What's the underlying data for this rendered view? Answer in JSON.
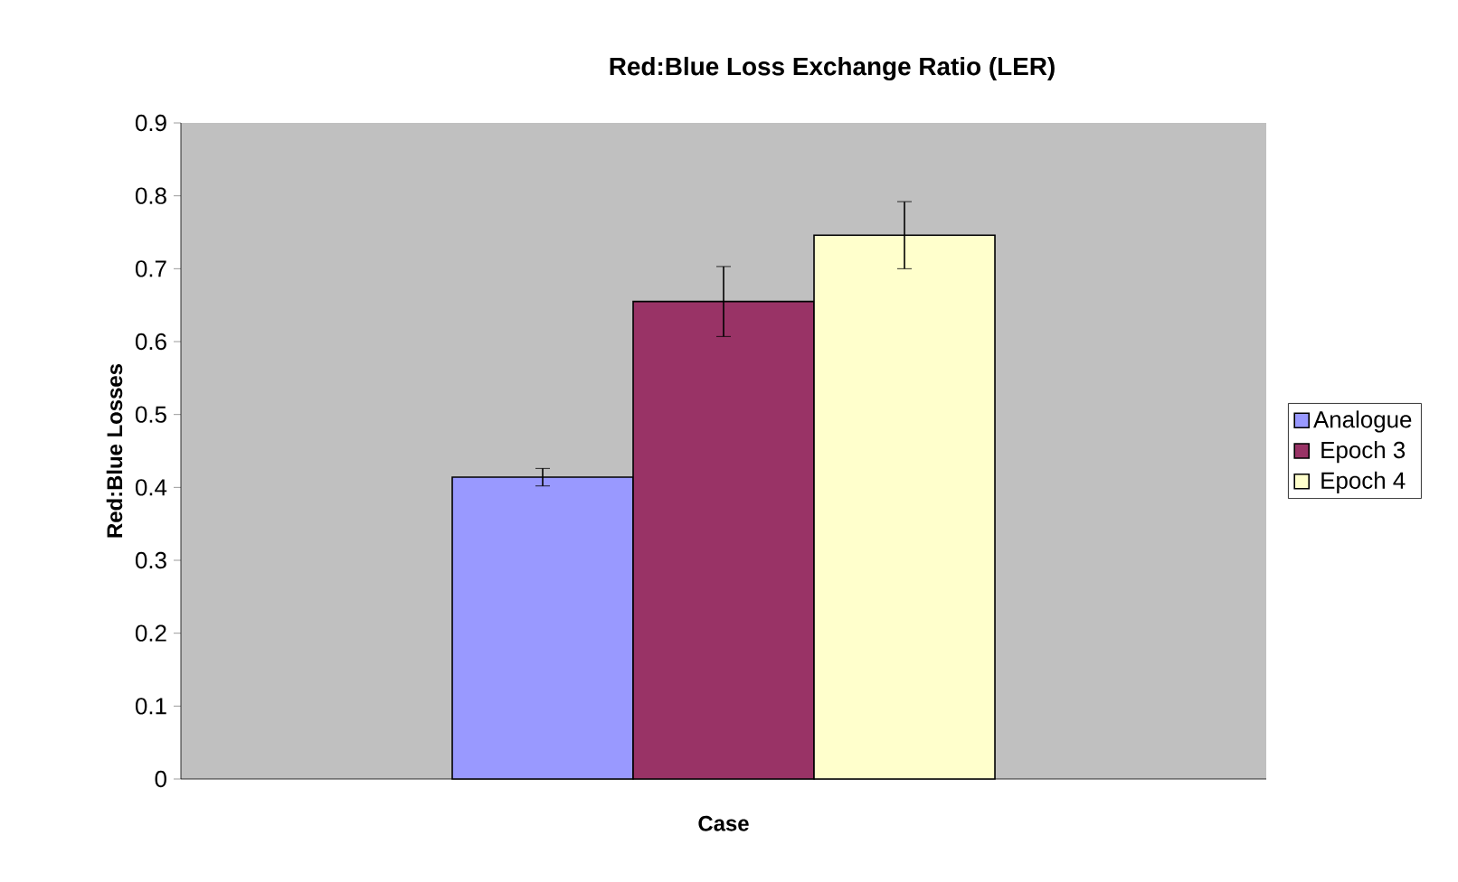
{
  "chart_data": {
    "type": "bar",
    "title": "Red:Blue Loss Exchange Ratio (LER)",
    "xlabel": "Case",
    "ylabel": "Red:Blue Losses",
    "categories": [
      null
    ],
    "series": [
      {
        "name": "Analogue",
        "color": "#9999ff",
        "values": [
          0.414
        ],
        "errors": [
          0.012
        ]
      },
      {
        "name": "Epoch 3",
        "color": "#993366",
        "values": [
          0.655
        ],
        "errors": [
          0.048
        ]
      },
      {
        "name": "Epoch 4",
        "color": "#ffffcc",
        "values": [
          0.746
        ],
        "errors": [
          0.046
        ]
      }
    ],
    "ylim": [
      0,
      0.9
    ],
    "yticks": [
      0,
      0.1,
      0.2,
      0.3,
      0.4,
      0.5,
      0.6,
      0.7,
      0.8,
      0.9
    ],
    "grid": false,
    "legend": "right"
  }
}
